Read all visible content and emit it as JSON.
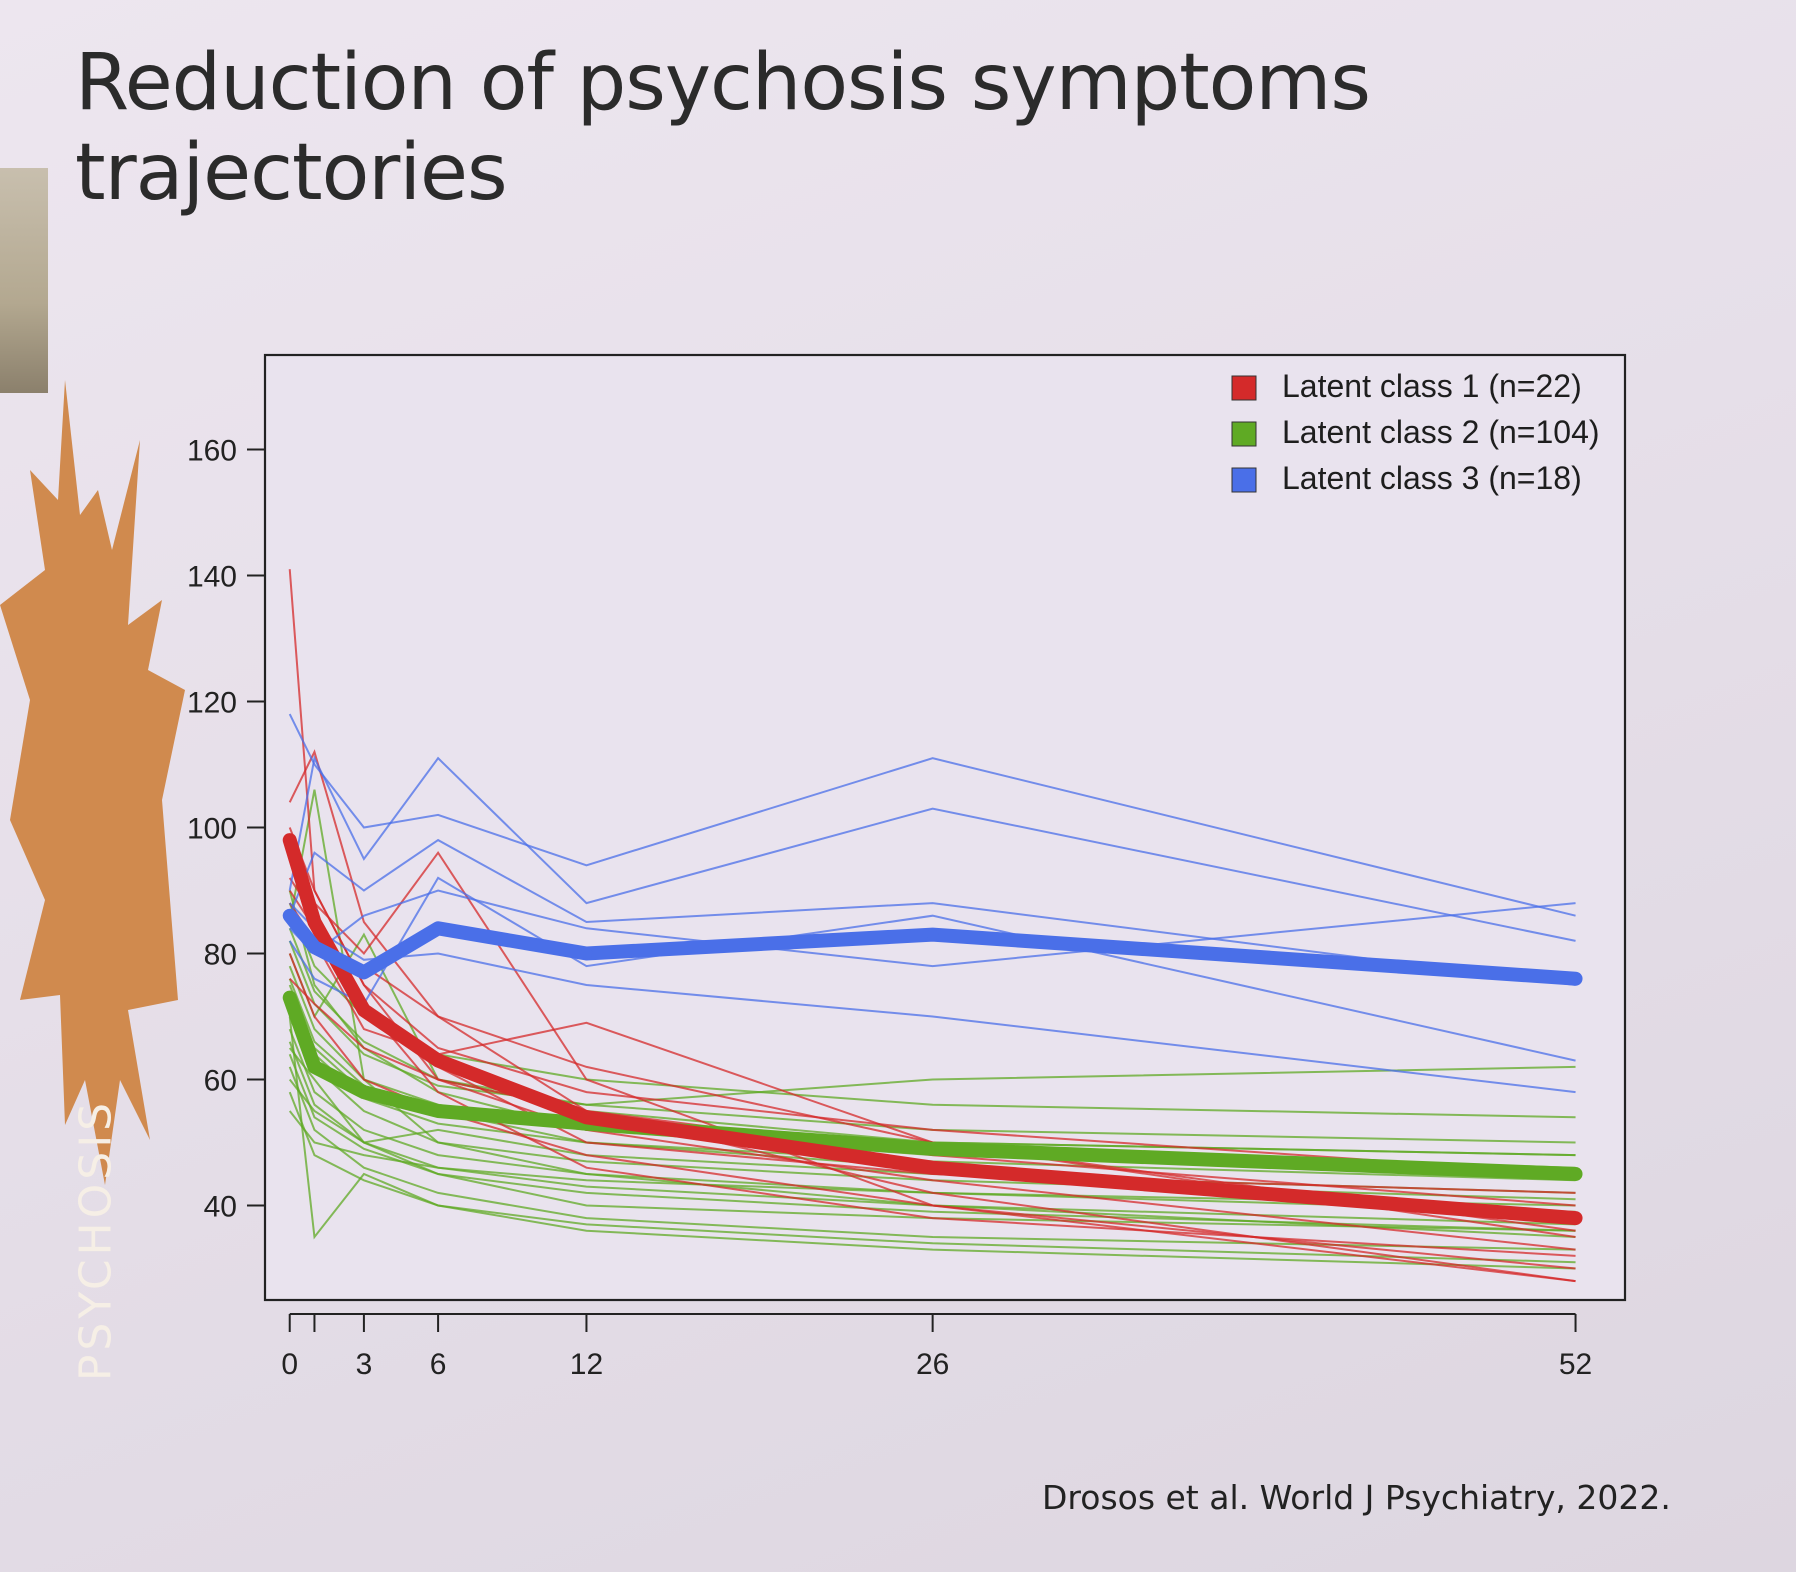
{
  "slide": {
    "title": "Reduction of psychosis symptoms trajectories",
    "badge_text": "PSYCHOSIS",
    "citation": "Drosos et al. World J Psychiatry, 2022."
  },
  "colors": {
    "class1": "#d42a2a",
    "class2": "#5faa24",
    "class3": "#4a6fe8",
    "badge": "#d08a4e"
  },
  "chart_data": {
    "type": "line",
    "title": "",
    "xlabel": "",
    "ylabel": "",
    "x": [
      0,
      1,
      3,
      6,
      12,
      26,
      52
    ],
    "xticks": [
      0,
      3,
      6,
      12,
      26,
      52
    ],
    "yticks": [
      40,
      60,
      80,
      100,
      120,
      140,
      160
    ],
    "xlim": [
      -1,
      54
    ],
    "ylim": [
      25,
      175
    ],
    "grid": false,
    "legend_position": "top-right",
    "series": [
      {
        "name": "Latent class 1 (n=22)",
        "color": "#d42a2a",
        "values": [
          98,
          85,
          71,
          63,
          54,
          46,
          38
        ]
      },
      {
        "name": "Latent class 2 (n=104)",
        "color": "#5faa24",
        "values": [
          73,
          62,
          58,
          55,
          53,
          49,
          45
        ]
      },
      {
        "name": "Latent class 3 (n=18)",
        "color": "#4a6fe8",
        "values": [
          86,
          81,
          77,
          84,
          80,
          83,
          76
        ]
      }
    ],
    "individual_trajectories": {
      "class1": [
        [
          141,
          90,
          75,
          60,
          52,
          44,
          33
        ],
        [
          104,
          112,
          85,
          70,
          55,
          42,
          28
        ],
        [
          95,
          88,
          80,
          96,
          60,
          40,
          30
        ],
        [
          90,
          84,
          70,
          62,
          50,
          45,
          42
        ],
        [
          85,
          80,
          78,
          70,
          62,
          50,
          35
        ],
        [
          100,
          90,
          75,
          65,
          58,
          52,
          45
        ],
        [
          80,
          70,
          60,
          55,
          48,
          40,
          28
        ],
        [
          92,
          86,
          72,
          58,
          46,
          38,
          32
        ],
        [
          88,
          82,
          68,
          64,
          69,
          50,
          36
        ],
        [
          76,
          72,
          65,
          60,
          55,
          48,
          40
        ]
      ],
      "class2": [
        [
          70,
          35,
          45,
          40,
          36,
          33,
          30
        ],
        [
          85,
          106,
          60,
          50,
          45,
          40,
          35
        ],
        [
          60,
          55,
          50,
          52,
          48,
          45,
          42
        ],
        [
          75,
          65,
          58,
          55,
          50,
          46,
          38
        ],
        [
          80,
          70,
          83,
          60,
          55,
          50,
          48
        ],
        [
          65,
          60,
          50,
          45,
          40,
          38,
          36
        ],
        [
          90,
          75,
          65,
          58,
          52,
          48,
          45
        ],
        [
          55,
          50,
          48,
          46,
          44,
          42,
          40
        ],
        [
          72,
          62,
          55,
          50,
          47,
          44,
          41
        ],
        [
          68,
          58,
          52,
          48,
          45,
          42,
          39
        ],
        [
          78,
          68,
          60,
          56,
          52,
          49,
          46
        ],
        [
          62,
          52,
          46,
          42,
          38,
          35,
          33
        ],
        [
          84,
          74,
          66,
          60,
          56,
          52,
          50
        ],
        [
          58,
          48,
          44,
          40,
          37,
          34,
          31
        ],
        [
          88,
          78,
          70,
          64,
          60,
          56,
          54
        ],
        [
          66,
          56,
          50,
          46,
          43,
          40,
          37
        ],
        [
          74,
          64,
          57,
          53,
          50,
          47,
          44
        ],
        [
          82,
          72,
          64,
          59,
          56,
          60,
          62
        ],
        [
          64,
          54,
          49,
          45,
          42,
          39,
          36
        ],
        [
          76,
          66,
          59,
          55,
          52,
          50,
          48
        ]
      ],
      "class3": [
        [
          118,
          110,
          100,
          102,
          94,
          111,
          86
        ],
        [
          90,
          111,
          95,
          111,
          88,
          103,
          82
        ],
        [
          86,
          96,
          90,
          98,
          85,
          88,
          75
        ],
        [
          82,
          76,
          72,
          92,
          78,
          86,
          63
        ],
        [
          88,
          84,
          79,
          80,
          75,
          70,
          58
        ],
        [
          84,
          80,
          86,
          90,
          84,
          78,
          88
        ]
      ]
    }
  }
}
